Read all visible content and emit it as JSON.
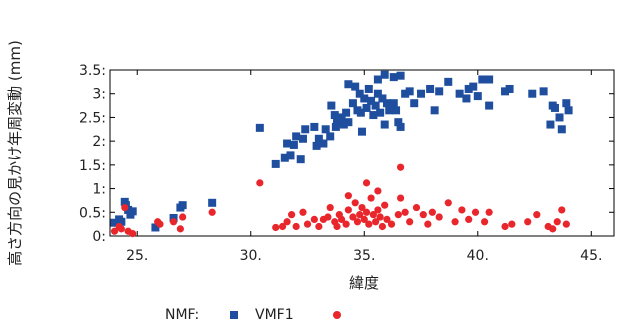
{
  "chart_data": {
    "type": "scatter",
    "xlabel": "緯度",
    "ylabel": "高さ方向の見かけ年周変動 (mm)",
    "xlim": [
      23.8,
      46
    ],
    "ylim": [
      0,
      3.5
    ],
    "x_ticks": [
      25,
      30,
      35,
      40,
      45
    ],
    "x_tick_labels": [
      "25.",
      "30.",
      "35.",
      "40.",
      "45."
    ],
    "y_ticks": [
      0,
      0.5,
      1,
      1.5,
      2,
      2.5,
      3,
      3.5
    ],
    "y_tick_labels": [
      "0:",
      "0.5:",
      "1:",
      "1.5:",
      "2:",
      "2.5:",
      "3:",
      "3.5:"
    ],
    "grid": false,
    "legend_position": "bottom",
    "colors": {
      "NMF": "#1f4e9e",
      "VMF1": "#e8262b"
    },
    "legend": {
      "nmf_label": "NMF:",
      "vmf1_label": "VMF1"
    },
    "series": [
      {
        "name": "NMF",
        "marker": "square",
        "points": [
          [
            24.0,
            0.28
          ],
          [
            24.2,
            0.35
          ],
          [
            24.3,
            0.3
          ],
          [
            24.45,
            0.72
          ],
          [
            24.5,
            0.65
          ],
          [
            24.6,
            0.55
          ],
          [
            24.7,
            0.45
          ],
          [
            24.8,
            0.52
          ],
          [
            25.8,
            0.18
          ],
          [
            26.6,
            0.38
          ],
          [
            26.9,
            0.6
          ],
          [
            27.0,
            0.65
          ],
          [
            28.3,
            0.7
          ],
          [
            30.4,
            2.28
          ],
          [
            31.1,
            1.52
          ],
          [
            31.5,
            1.65
          ],
          [
            31.6,
            1.95
          ],
          [
            31.75,
            1.7
          ],
          [
            31.9,
            1.92
          ],
          [
            32.0,
            2.1
          ],
          [
            32.2,
            1.62
          ],
          [
            32.3,
            2.05
          ],
          [
            32.4,
            2.25
          ],
          [
            32.8,
            2.3
          ],
          [
            32.9,
            1.9
          ],
          [
            33.0,
            2.05
          ],
          [
            33.2,
            1.95
          ],
          [
            33.3,
            2.25
          ],
          [
            33.5,
            2.1
          ],
          [
            33.55,
            2.75
          ],
          [
            33.7,
            2.55
          ],
          [
            33.75,
            2.3
          ],
          [
            33.8,
            2.4
          ],
          [
            33.9,
            2.5
          ],
          [
            34.0,
            2.45
          ],
          [
            34.1,
            2.35
          ],
          [
            34.2,
            2.6
          ],
          [
            34.3,
            2.4
          ],
          [
            34.5,
            2.8
          ],
          [
            34.6,
            3.15
          ],
          [
            34.7,
            2.65
          ],
          [
            34.8,
            3.0
          ],
          [
            34.85,
            2.6
          ],
          [
            35.0,
            2.9
          ],
          [
            35.1,
            2.7
          ],
          [
            35.2,
            3.1
          ],
          [
            35.3,
            2.85
          ],
          [
            35.4,
            2.55
          ],
          [
            35.5,
            2.75
          ],
          [
            35.6,
            3.0
          ],
          [
            35.7,
            2.6
          ],
          [
            35.8,
            2.9
          ],
          [
            35.9,
            2.35
          ],
          [
            34.3,
            3.2
          ],
          [
            34.9,
            2.2
          ],
          [
            35.6,
            3.3
          ],
          [
            35.9,
            3.4
          ],
          [
            36.3,
            3.35
          ],
          [
            36.6,
            3.38
          ],
          [
            36.8,
            3.0
          ],
          [
            36.0,
            2.8
          ],
          [
            36.1,
            2.65
          ],
          [
            36.3,
            2.8
          ],
          [
            36.4,
            2.65
          ],
          [
            36.5,
            2.4
          ],
          [
            36.6,
            2.3
          ],
          [
            37.0,
            3.05
          ],
          [
            37.2,
            2.8
          ],
          [
            37.5,
            3.0
          ],
          [
            37.9,
            3.1
          ],
          [
            38.1,
            2.65
          ],
          [
            38.3,
            3.05
          ],
          [
            38.7,
            3.25
          ],
          [
            39.2,
            3.0
          ],
          [
            39.5,
            2.9
          ],
          [
            39.6,
            3.1
          ],
          [
            39.8,
            3.15
          ],
          [
            40.0,
            2.95
          ],
          [
            40.2,
            3.3
          ],
          [
            40.5,
            3.3
          ],
          [
            40.5,
            2.75
          ],
          [
            41.2,
            3.05
          ],
          [
            41.4,
            3.1
          ],
          [
            42.4,
            3.0
          ],
          [
            42.9,
            3.05
          ],
          [
            43.2,
            2.35
          ],
          [
            43.3,
            2.75
          ],
          [
            43.4,
            2.7
          ],
          [
            43.6,
            2.5
          ],
          [
            43.7,
            2.25
          ],
          [
            43.9,
            2.8
          ],
          [
            44.0,
            2.65
          ]
        ]
      },
      {
        "name": "VMF1",
        "marker": "circle",
        "points": [
          [
            24.0,
            0.1
          ],
          [
            24.2,
            0.2
          ],
          [
            24.3,
            0.15
          ],
          [
            24.45,
            0.6
          ],
          [
            24.6,
            0.1
          ],
          [
            24.8,
            0.05
          ],
          [
            25.9,
            0.3
          ],
          [
            26.0,
            0.25
          ],
          [
            26.6,
            0.3
          ],
          [
            26.9,
            0.15
          ],
          [
            27.0,
            0.4
          ],
          [
            28.3,
            0.5
          ],
          [
            30.4,
            1.12
          ],
          [
            31.1,
            0.18
          ],
          [
            31.4,
            0.2
          ],
          [
            31.6,
            0.3
          ],
          [
            31.8,
            0.45
          ],
          [
            32.0,
            0.2
          ],
          [
            32.3,
            0.5
          ],
          [
            32.5,
            0.25
          ],
          [
            32.8,
            0.35
          ],
          [
            33.0,
            0.2
          ],
          [
            33.2,
            0.35
          ],
          [
            33.4,
            0.4
          ],
          [
            33.5,
            0.6
          ],
          [
            33.7,
            0.3
          ],
          [
            33.8,
            0.2
          ],
          [
            33.9,
            0.45
          ],
          [
            34.0,
            0.35
          ],
          [
            34.2,
            0.25
          ],
          [
            34.3,
            0.55
          ],
          [
            34.5,
            0.4
          ],
          [
            34.6,
            0.7
          ],
          [
            34.7,
            0.3
          ],
          [
            34.8,
            0.45
          ],
          [
            34.9,
            0.6
          ],
          [
            35.0,
            0.35
          ],
          [
            35.1,
            0.5
          ],
          [
            35.2,
            0.25
          ],
          [
            35.3,
            0.8
          ],
          [
            35.4,
            0.45
          ],
          [
            35.5,
            0.3
          ],
          [
            35.6,
            0.55
          ],
          [
            35.7,
            0.4
          ],
          [
            35.8,
            0.2
          ],
          [
            35.9,
            0.65
          ],
          [
            34.3,
            0.85
          ],
          [
            35.1,
            1.12
          ],
          [
            35.6,
            0.95
          ],
          [
            36.6,
            1.45
          ],
          [
            36.0,
            0.35
          ],
          [
            36.2,
            0.25
          ],
          [
            36.5,
            0.45
          ],
          [
            36.6,
            0.8
          ],
          [
            36.8,
            0.5
          ],
          [
            37.0,
            0.3
          ],
          [
            37.3,
            0.6
          ],
          [
            37.6,
            0.45
          ],
          [
            37.8,
            0.25
          ],
          [
            38.0,
            0.5
          ],
          [
            38.3,
            0.4
          ],
          [
            38.7,
            0.7
          ],
          [
            39.0,
            0.3
          ],
          [
            39.3,
            0.55
          ],
          [
            39.6,
            0.35
          ],
          [
            39.9,
            0.5
          ],
          [
            40.3,
            0.3
          ],
          [
            40.5,
            0.5
          ],
          [
            41.2,
            0.2
          ],
          [
            41.5,
            0.25
          ],
          [
            42.2,
            0.3
          ],
          [
            42.6,
            0.45
          ],
          [
            43.1,
            0.2
          ],
          [
            43.3,
            0.15
          ],
          [
            43.5,
            0.3
          ],
          [
            43.7,
            0.55
          ],
          [
            43.9,
            0.25
          ]
        ]
      }
    ]
  }
}
